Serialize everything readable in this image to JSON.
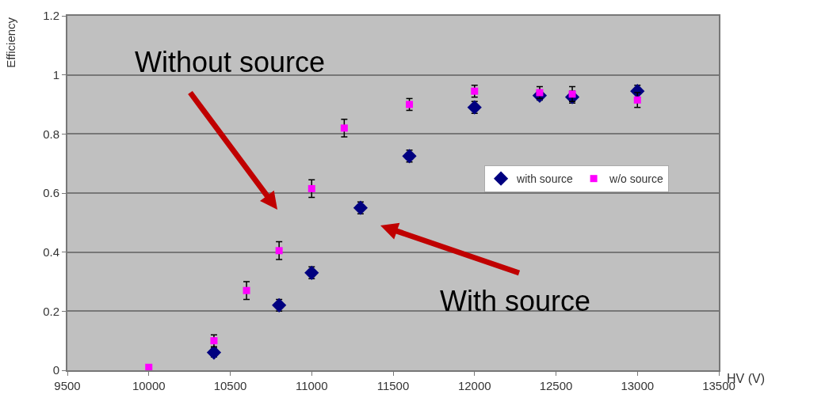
{
  "chart_data": {
    "type": "scatter",
    "xlabel": "HV (V)",
    "ylabel": "Efficiency",
    "xlim": [
      9500,
      13500
    ],
    "xticks": [
      9500,
      10000,
      10500,
      11000,
      11500,
      12000,
      12500,
      13000,
      13500
    ],
    "ylim": [
      0,
      1.2
    ],
    "yticks": [
      0,
      0.2,
      0.4,
      0.6,
      0.8,
      1,
      1.2
    ],
    "grid": "y",
    "legend": "right",
    "series": [
      {
        "name": "with source",
        "color": "#000080",
        "marker": "diamond",
        "x": [
          10400,
          10800,
          11000,
          11300,
          11600,
          12000,
          12400,
          12600,
          13000
        ],
        "values": [
          0.06,
          0.22,
          0.33,
          0.55,
          0.725,
          0.89,
          0.93,
          0.925,
          0.945
        ],
        "errors": [
          0.015,
          0.02,
          0.02,
          0.02,
          0.02,
          0.02,
          0.015,
          0.02,
          0.02
        ]
      },
      {
        "name": "w/o source",
        "color": "#ff00ff",
        "marker": "square",
        "x": [
          10000,
          10400,
          10600,
          10800,
          11000,
          11200,
          11600,
          12000,
          12400,
          12600,
          13000
        ],
        "values": [
          0.01,
          0.1,
          0.27,
          0.405,
          0.615,
          0.82,
          0.9,
          0.945,
          0.94,
          0.935,
          0.915
        ],
        "errors": [
          null,
          0.02,
          0.03,
          0.03,
          0.03,
          0.03,
          0.02,
          0.02,
          0.02,
          0.025,
          0.025
        ]
      }
    ],
    "annotations": [
      "Without source",
      "With source"
    ]
  }
}
